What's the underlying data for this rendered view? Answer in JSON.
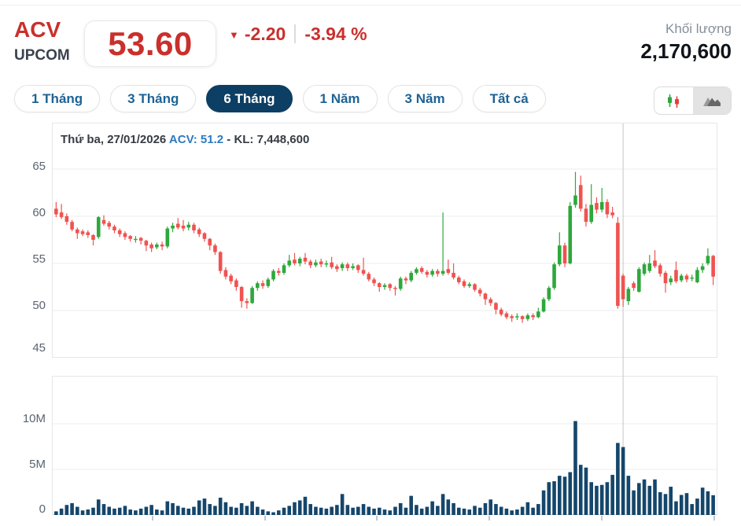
{
  "header": {
    "symbol": "ACV",
    "exchange": "UPCOM",
    "price": "53.60",
    "change": "-2.20",
    "change_percent": "-3.94 %",
    "down_arrow": "▼",
    "volume_label": "Khối lượng",
    "volume_value": "2,170,600"
  },
  "toolbar": {
    "ranges": [
      {
        "label": "1 Tháng",
        "active": false
      },
      {
        "label": "3 Tháng",
        "active": false
      },
      {
        "label": "6 Tháng",
        "active": true
      },
      {
        "label": "1 Năm",
        "active": false
      },
      {
        "label": "3 Năm",
        "active": false
      },
      {
        "label": "Tất cả",
        "active": false
      }
    ],
    "chart_types": [
      {
        "name": "candlestick",
        "active": false
      },
      {
        "name": "area",
        "active": true
      }
    ]
  },
  "tooltip": {
    "date_label": "Thứ ba, 27/01/2026",
    "symbol_value": "ACV: 51.2",
    "volume_part": " - KL: 7,448,600"
  },
  "colors": {
    "up": "#2ea83c",
    "down": "#ef5350",
    "volume_bar": "#15466b",
    "grid": "#ededed",
    "crosshair": "#c6c6c6",
    "tick": "#a9b6c3",
    "accent_red": "#c9302c",
    "accent_navy": "#0d3e63",
    "link_blue": "#1d6396"
  },
  "chart_data": {
    "type": "candlestick",
    "title": "ACV 6-month daily price with volume",
    "price_axis_labels": [
      "65",
      "60",
      "55",
      "50",
      "45"
    ],
    "price_axis_values": [
      65,
      60,
      55,
      50,
      45
    ],
    "price_axis_range": [
      45,
      65
    ],
    "volume_axis_labels": [
      "10M",
      "5M",
      "0"
    ],
    "volume_axis_values_m": [
      10,
      5,
      0
    ],
    "volume_axis_range_m": [
      0,
      10
    ],
    "grid": true,
    "crosshair_index": 107,
    "crosshair_close": 51.2,
    "crosshair_volume": 7448600,
    "month_tick_x": [
      194,
      337,
      479,
      622,
      765,
      908
    ],
    "candles_ohlc": [
      [
        60.8,
        61.5,
        59.9,
        60.2
      ],
      [
        60.4,
        61.3,
        59.7,
        59.9
      ],
      [
        60.0,
        60.3,
        59.1,
        59.4
      ],
      [
        59.4,
        59.6,
        58.4,
        58.6
      ],
      [
        58.6,
        58.8,
        57.6,
        58.2
      ],
      [
        58.4,
        58.6,
        57.9,
        58.1
      ],
      [
        58.3,
        58.5,
        57.7,
        58.0
      ],
      [
        58.0,
        58.1,
        56.9,
        57.5
      ],
      [
        57.8,
        60.0,
        57.6,
        59.9
      ],
      [
        59.6,
        60.1,
        59.0,
        59.2
      ],
      [
        59.3,
        59.5,
        58.6,
        58.9
      ],
      [
        58.9,
        59.1,
        58.2,
        58.5
      ],
      [
        58.5,
        58.7,
        57.8,
        58.1
      ],
      [
        58.2,
        58.4,
        57.5,
        57.8
      ],
      [
        57.9,
        58.0,
        57.3,
        57.6
      ],
      [
        57.5,
        57.9,
        57.2,
        57.6
      ],
      [
        57.7,
        57.8,
        57.0,
        57.4
      ],
      [
        57.4,
        57.5,
        56.3,
        56.9
      ],
      [
        57.0,
        57.2,
        56.2,
        56.6
      ],
      [
        56.7,
        57.2,
        56.5,
        57.0
      ],
      [
        57.0,
        57.3,
        56.4,
        56.8
      ],
      [
        56.8,
        58.9,
        56.6,
        58.7
      ],
      [
        58.7,
        59.3,
        58.3,
        59.0
      ],
      [
        59.2,
        59.8,
        58.6,
        58.8
      ],
      [
        59.0,
        59.6,
        58.4,
        58.7
      ],
      [
        58.8,
        59.4,
        58.5,
        59.1
      ],
      [
        59.1,
        59.3,
        58.2,
        58.5
      ],
      [
        58.6,
        58.8,
        57.8,
        58.1
      ],
      [
        58.2,
        58.3,
        57.3,
        57.6
      ],
      [
        57.6,
        57.7,
        56.4,
        56.9
      ],
      [
        56.9,
        57.1,
        55.9,
        56.2
      ],
      [
        56.2,
        56.3,
        53.9,
        54.2
      ],
      [
        54.3,
        54.6,
        53.3,
        53.6
      ],
      [
        53.7,
        53.9,
        52.8,
        53.1
      ],
      [
        53.2,
        53.4,
        52.1,
        52.5
      ],
      [
        52.5,
        52.6,
        50.3,
        51.0
      ],
      [
        51.0,
        51.3,
        50.2,
        50.8
      ],
      [
        50.8,
        52.6,
        50.7,
        52.4
      ],
      [
        52.4,
        53.1,
        52.1,
        52.9
      ],
      [
        52.9,
        53.2,
        52.3,
        52.6
      ],
      [
        52.6,
        53.5,
        52.4,
        53.3
      ],
      [
        53.3,
        54.4,
        53.1,
        54.2
      ],
      [
        54.2,
        54.5,
        53.7,
        54.0
      ],
      [
        54.0,
        55.0,
        53.8,
        54.8
      ],
      [
        54.8,
        55.9,
        54.6,
        55.3
      ],
      [
        55.4,
        56.1,
        54.8,
        55.0
      ],
      [
        55.0,
        55.7,
        54.7,
        55.5
      ],
      [
        55.6,
        56.1,
        54.9,
        55.2
      ],
      [
        55.2,
        55.4,
        54.5,
        54.8
      ],
      [
        54.8,
        55.4,
        54.6,
        55.1
      ],
      [
        55.2,
        55.5,
        54.6,
        54.9
      ],
      [
        54.9,
        55.3,
        54.6,
        55.0
      ],
      [
        55.1,
        55.7,
        54.4,
        54.6
      ],
      [
        54.7,
        54.9,
        54.1,
        54.4
      ],
      [
        54.5,
        55.1,
        54.2,
        54.9
      ],
      [
        54.9,
        55.1,
        54.2,
        54.5
      ],
      [
        54.5,
        55.0,
        54.3,
        54.7
      ],
      [
        54.8,
        54.9,
        54.0,
        54.3
      ],
      [
        54.3,
        55.6,
        53.7,
        53.9
      ],
      [
        53.9,
        54.1,
        53.1,
        53.3
      ],
      [
        53.3,
        53.5,
        52.6,
        52.9
      ],
      [
        52.9,
        53.0,
        52.0,
        52.5
      ],
      [
        52.5,
        52.9,
        52.2,
        52.7
      ],
      [
        52.8,
        52.9,
        52.1,
        52.4
      ],
      [
        52.4,
        52.6,
        51.6,
        52.3
      ],
      [
        52.3,
        53.6,
        52.1,
        53.4
      ],
      [
        53.4,
        53.6,
        52.8,
        53.2
      ],
      [
        53.2,
        54.2,
        53.0,
        54.0
      ],
      [
        54.0,
        54.6,
        53.8,
        54.4
      ],
      [
        54.5,
        54.7,
        53.9,
        54.1
      ],
      [
        54.1,
        54.3,
        53.5,
        53.8
      ],
      [
        53.8,
        54.4,
        53.6,
        54.2
      ],
      [
        54.2,
        54.4,
        53.6,
        53.9
      ],
      [
        53.9,
        60.4,
        53.7,
        54.2
      ],
      [
        54.4,
        55.4,
        53.8,
        54.0
      ],
      [
        54.0,
        55.0,
        53.3,
        53.5
      ],
      [
        53.5,
        53.7,
        52.8,
        53.0
      ],
      [
        53.1,
        53.3,
        52.4,
        52.6
      ],
      [
        52.6,
        53.0,
        52.4,
        52.8
      ],
      [
        52.8,
        52.9,
        52.0,
        52.2
      ],
      [
        52.2,
        52.4,
        51.5,
        51.8
      ],
      [
        51.8,
        51.9,
        50.6,
        51.2
      ],
      [
        51.2,
        51.4,
        50.5,
        50.8
      ],
      [
        50.8,
        50.9,
        49.6,
        50.1
      ],
      [
        50.1,
        50.3,
        49.4,
        49.6
      ],
      [
        49.7,
        49.9,
        49.1,
        49.3
      ],
      [
        49.4,
        49.6,
        48.8,
        49.2
      ],
      [
        49.3,
        49.7,
        49.0,
        49.4
      ],
      [
        49.4,
        49.5,
        48.7,
        49.1
      ],
      [
        49.1,
        49.7,
        48.9,
        49.5
      ],
      [
        49.5,
        49.7,
        49.0,
        49.3
      ],
      [
        49.3,
        50.3,
        49.2,
        49.9
      ],
      [
        49.9,
        51.4,
        49.8,
        51.2
      ],
      [
        51.2,
        52.6,
        51.0,
        52.4
      ],
      [
        52.4,
        55.1,
        52.2,
        54.9
      ],
      [
        54.9,
        58.3,
        54.7,
        56.9
      ],
      [
        56.9,
        57.2,
        54.6,
        55.0
      ],
      [
        55.0,
        61.5,
        54.9,
        61.1
      ],
      [
        61.2,
        64.7,
        60.9,
        62.2
      ],
      [
        63.3,
        64.3,
        60.5,
        60.8
      ],
      [
        60.8,
        61.3,
        58.9,
        59.4
      ],
      [
        59.4,
        63.4,
        59.2,
        61.2
      ],
      [
        61.4,
        62.0,
        60.3,
        60.7
      ],
      [
        60.7,
        63.0,
        60.4,
        61.5
      ],
      [
        61.5,
        61.8,
        59.8,
        60.2
      ],
      [
        60.4,
        61.0,
        59.8,
        60.1
      ],
      [
        59.3,
        59.9,
        50.2,
        50.5
      ],
      [
        53.7,
        53.9,
        50.4,
        51.2
      ],
      [
        51.0,
        52.5,
        50.6,
        52.3
      ],
      [
        52.9,
        53.1,
        52.1,
        52.4
      ],
      [
        52.0,
        54.6,
        51.9,
        54.4
      ],
      [
        53.9,
        55.1,
        53.7,
        54.9
      ],
      [
        54.2,
        55.9,
        54.0,
        55.0
      ],
      [
        55.3,
        56.4,
        54.5,
        54.7
      ],
      [
        54.8,
        55.0,
        53.6,
        53.9
      ],
      [
        54.0,
        54.2,
        51.9,
        52.9
      ],
      [
        53.0,
        53.7,
        52.7,
        53.4
      ],
      [
        54.3,
        55.2,
        52.9,
        53.1
      ],
      [
        53.2,
        53.9,
        53.0,
        53.7
      ],
      [
        53.7,
        53.9,
        53.0,
        53.3
      ],
      [
        53.4,
        53.8,
        53.1,
        53.5
      ],
      [
        53.0,
        54.6,
        52.9,
        54.3
      ],
      [
        54.3,
        55.0,
        54.0,
        54.7
      ],
      [
        55.0,
        56.6,
        54.8,
        55.8
      ],
      [
        55.8,
        55.9,
        52.7,
        53.6
      ]
    ],
    "volumes_m": [
      0.4,
      0.7,
      1.1,
      1.3,
      0.9,
      0.5,
      0.6,
      0.8,
      1.7,
      1.2,
      0.9,
      0.7,
      0.8,
      1.0,
      0.6,
      0.5,
      0.7,
      0.9,
      1.1,
      0.6,
      0.5,
      1.5,
      1.3,
      1.0,
      0.8,
      0.7,
      0.9,
      1.6,
      1.8,
      1.2,
      1.0,
      1.9,
      1.4,
      0.9,
      0.8,
      1.3,
      1.0,
      1.5,
      0.9,
      0.6,
      0.4,
      0.3,
      0.5,
      0.8,
      1.0,
      1.4,
      1.6,
      2.0,
      1.2,
      0.9,
      0.8,
      0.7,
      0.9,
      1.1,
      2.3,
      1.1,
      0.8,
      0.9,
      1.2,
      0.9,
      0.7,
      0.8,
      0.6,
      0.5,
      0.9,
      1.3,
      0.8,
      2.1,
      1.1,
      0.7,
      0.9,
      1.5,
      1.0,
      2.3,
      1.7,
      1.3,
      0.8,
      0.7,
      0.6,
      1.0,
      0.8,
      1.3,
      1.7,
      1.2,
      0.9,
      0.7,
      0.5,
      0.6,
      0.9,
      1.4,
      0.8,
      1.2,
      2.7,
      3.6,
      3.7,
      4.3,
      4.2,
      4.7,
      10.3,
      5.5,
      5.2,
      3.6,
      3.2,
      3.3,
      3.6,
      4.4,
      7.9,
      7.45,
      4.3,
      2.7,
      3.5,
      3.9,
      3.2,
      3.9,
      2.5,
      2.3,
      3.1,
      1.5,
      2.2,
      2.4,
      1.2,
      1.8,
      3.0,
      2.6,
      2.17
    ]
  }
}
